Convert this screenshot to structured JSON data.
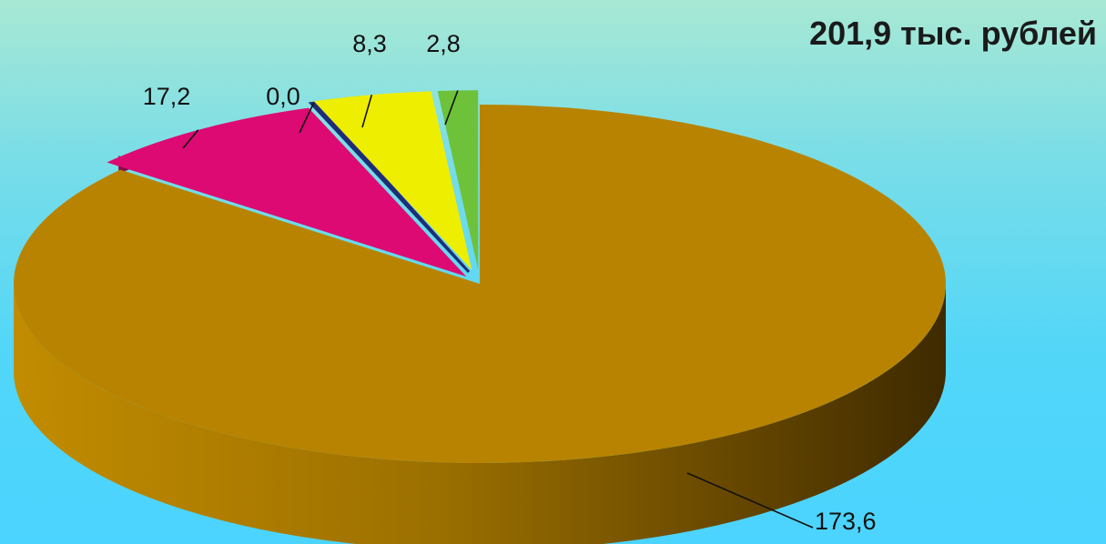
{
  "chart_data": {
    "type": "pie",
    "title": "201,9 тыс. рублей",
    "slices": [
      {
        "value": 173.6,
        "label": "173,6",
        "color": "#b88400"
      },
      {
        "value": 17.2,
        "label": "17,2",
        "color": "#dc0a72"
      },
      {
        "value": 0.0,
        "label": "0,0",
        "color": "#1f2d78"
      },
      {
        "value": 8.3,
        "label": "8,3",
        "color": "#eeee00"
      },
      {
        "value": 2.8,
        "label": "2,8",
        "color": "#6ec23a"
      }
    ]
  }
}
